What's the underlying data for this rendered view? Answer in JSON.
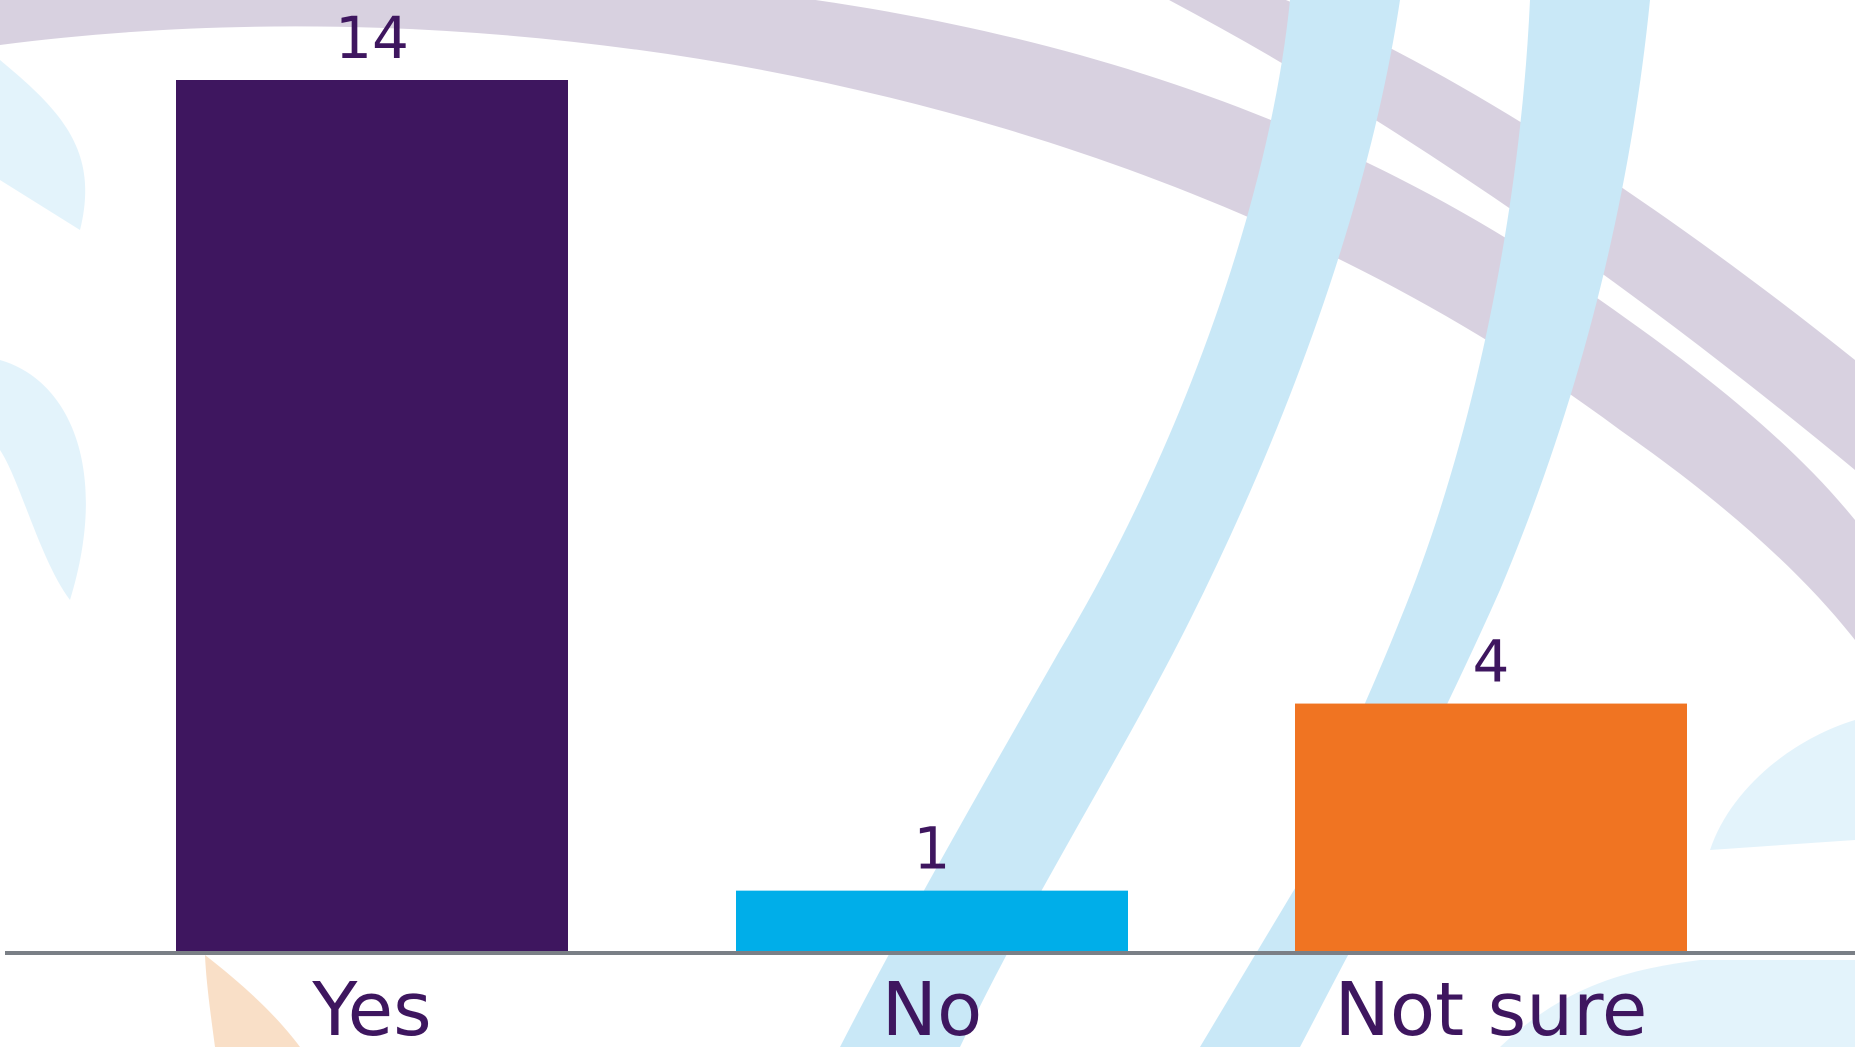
{
  "chart_data": {
    "type": "bar",
    "title": "",
    "xlabel": "",
    "ylabel": "",
    "categories": [
      "Yes",
      "No",
      "Not sure"
    ],
    "values": [
      14,
      1,
      4
    ],
    "data_labels": [
      "14",
      "1",
      "4"
    ],
    "bar_colors": [
      "#3e165f",
      "#00aee9",
      "#f07422"
    ],
    "ylim": [
      0,
      14
    ],
    "grid": false,
    "axis_color": "#7a7f86",
    "label_color": "#3e165f"
  },
  "background": {
    "decoration": "curved-band-logo-watermark",
    "colors": {
      "grey_band": "#d8d1e0",
      "blue_band": "#c9e8f7",
      "light_blue": "#e3f3fb",
      "peach": "#f9dfc7"
    }
  }
}
